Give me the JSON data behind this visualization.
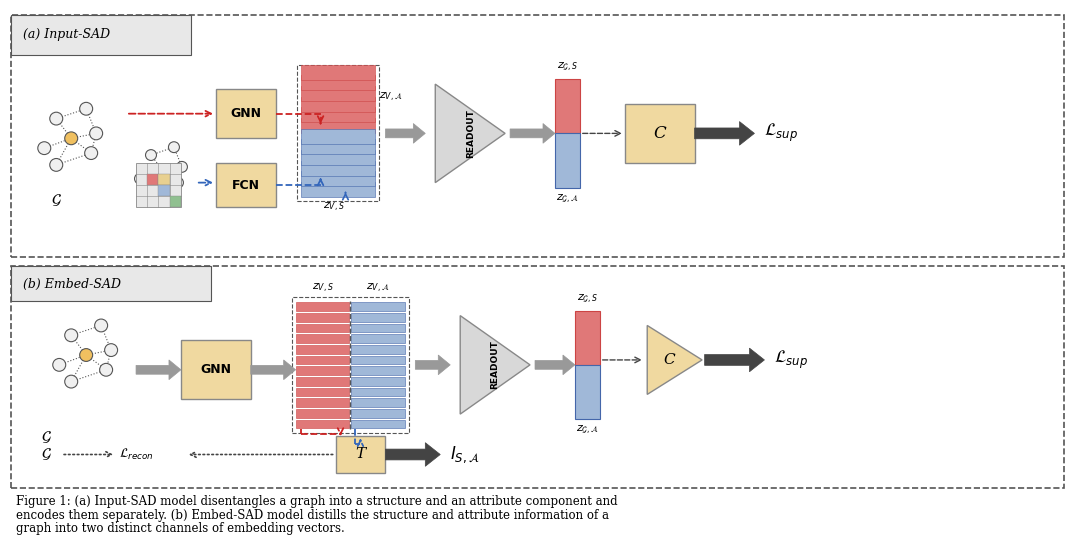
{
  "bg_color": "#ffffff",
  "fig_width": 10.8,
  "fig_height": 5.39,
  "caption_line1": "Figure 1: (a) Input-SAD model disentangles a graph into a structure and an attribute component and",
  "caption_line2": "encodes them separately. (b) Embed-SAD model distills the structure and attribute information of a",
  "caption_line3": "graph into two distinct channels of embedding vectors.",
  "panel_a_label": "(a) Input-SAD",
  "panel_b_label": "(b) Embed-SAD",
  "box_fill_tan": "#F0D9A0",
  "box_fill_red": "#E07878",
  "box_fill_blue": "#A0B8D8",
  "box_fill_gray": "#B0B0B0",
  "box_fill_light_gray": "#D8D8D8",
  "arrow_red": "#CC2222",
  "arrow_blue": "#3366BB",
  "arrow_gray": "#999999",
  "arrow_dark": "#444444",
  "node_fill": "#F0F0F0",
  "node_center_fill": "#F0C060"
}
